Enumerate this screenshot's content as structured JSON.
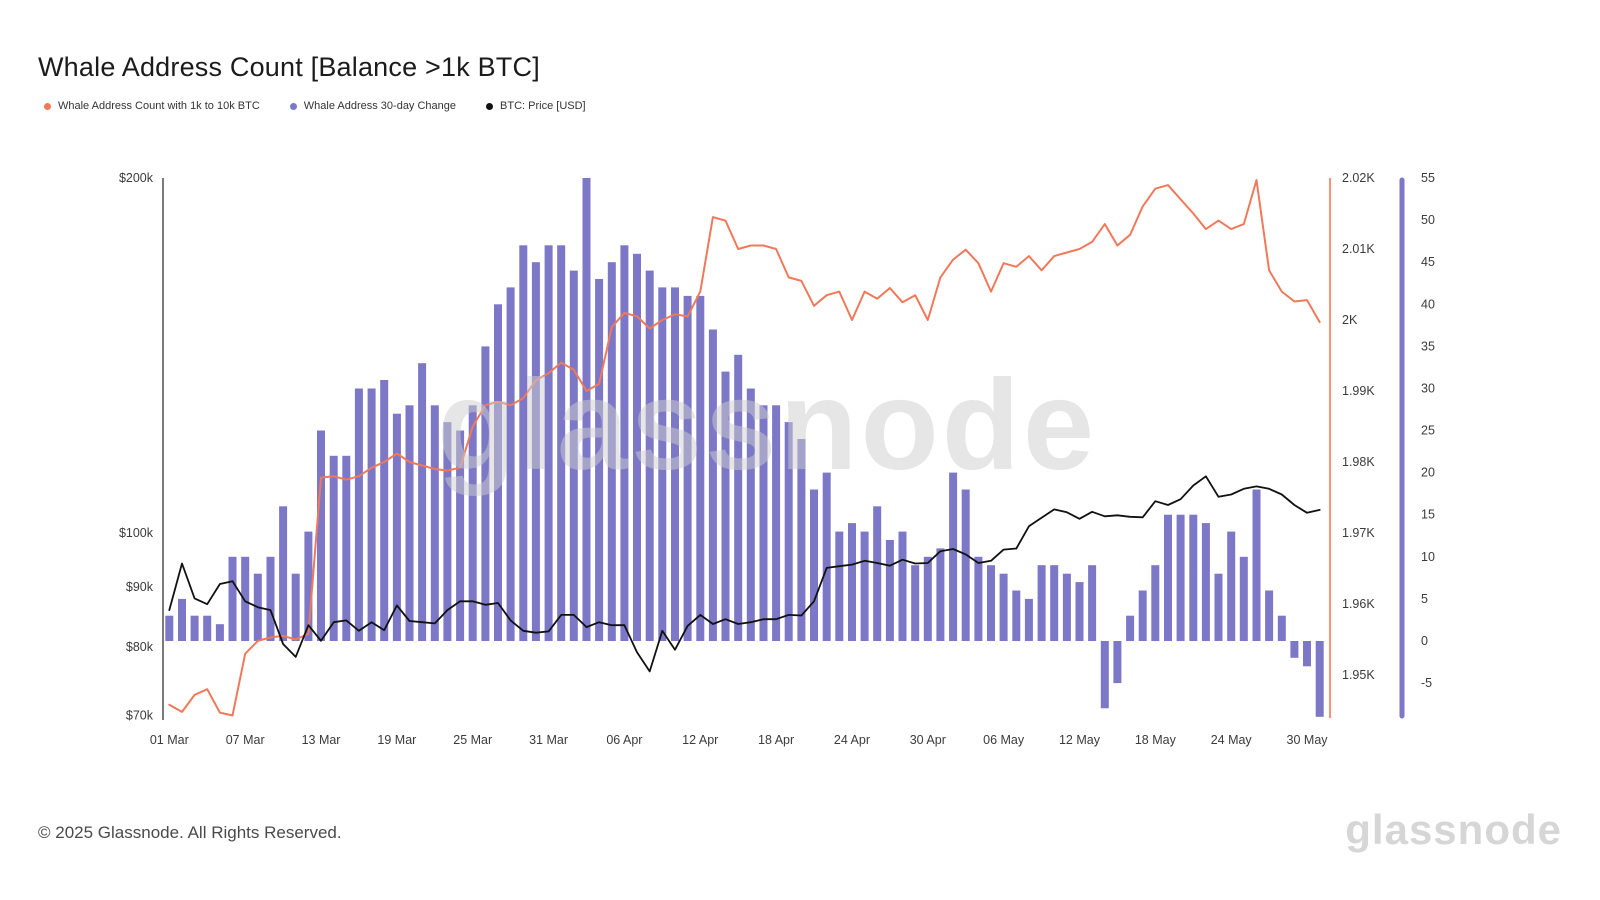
{
  "page": {
    "title": "Whale Address Count [Balance >1k BTC]",
    "footer": "© 2025 Glassnode. All Rights Reserved.",
    "watermark": "glassnode"
  },
  "legend": [
    {
      "label": "Whale Address Count with 1k to 10k BTC",
      "color": "#f0795a"
    },
    {
      "label": "Whale Address 30-day Change",
      "color": "#7d77c7"
    },
    {
      "label": "BTC: Price [USD]",
      "color": "#111111"
    }
  ],
  "chart_data": {
    "type": "mixed",
    "title": "Whale Address Count [Balance >1k BTC]",
    "days": 92,
    "x_ticks": [
      {
        "label": "01 Mar",
        "index": 0
      },
      {
        "label": "07 Mar",
        "index": 6
      },
      {
        "label": "13 Mar",
        "index": 12
      },
      {
        "label": "19 Mar",
        "index": 18
      },
      {
        "label": "25 Mar",
        "index": 24
      },
      {
        "label": "31 Mar",
        "index": 30
      },
      {
        "label": "06 Apr",
        "index": 36
      },
      {
        "label": "12 Apr",
        "index": 42
      },
      {
        "label": "18 Apr",
        "index": 48
      },
      {
        "label": "24 Apr",
        "index": 54
      },
      {
        "label": "30 Apr",
        "index": 60
      },
      {
        "label": "06 May",
        "index": 66
      },
      {
        "label": "12 May",
        "index": 72
      },
      {
        "label": "18 May",
        "index": 78
      },
      {
        "label": "24 May",
        "index": 84
      },
      {
        "label": "30 May",
        "index": 90
      }
    ],
    "left_axis": {
      "name": "BTC price USD",
      "scale": "log",
      "ticks": [
        {
          "label": "$200k",
          "value": 200
        },
        {
          "label": "$100k",
          "value": 100
        },
        {
          "label": "$90k",
          "value": 90
        },
        {
          "label": "$80k",
          "value": 80
        },
        {
          "label": "$70k",
          "value": 70
        }
      ]
    },
    "right_axis_count": {
      "name": "Whale address count (K)",
      "scale": "linear",
      "ticks": [
        {
          "label": "2.02K",
          "value": 2.02
        },
        {
          "label": "2.01K",
          "value": 2.01
        },
        {
          "label": "2K",
          "value": 2.0
        },
        {
          "label": "1.99K",
          "value": 1.99
        },
        {
          "label": "1.98K",
          "value": 1.98
        },
        {
          "label": "1.97K",
          "value": 1.97
        },
        {
          "label": "1.96K",
          "value": 1.96
        },
        {
          "label": "1.95K",
          "value": 1.95
        }
      ]
    },
    "right_axis_change": {
      "name": "30-day change",
      "scale": "linear",
      "max": 55,
      "ticks": [
        {
          "label": "55",
          "value": 55
        },
        {
          "label": "50",
          "value": 50
        },
        {
          "label": "45",
          "value": 45
        },
        {
          "label": "40",
          "value": 40
        },
        {
          "label": "35",
          "value": 35
        },
        {
          "label": "30",
          "value": 30
        },
        {
          "label": "25",
          "value": 25
        },
        {
          "label": "20",
          "value": 20
        },
        {
          "label": "15",
          "value": 15
        },
        {
          "label": "10",
          "value": 10
        },
        {
          "label": "5",
          "value": 5
        },
        {
          "label": "0",
          "value": 0
        },
        {
          "label": "-5",
          "value": -5
        }
      ]
    },
    "series": [
      {
        "name": "Whale Address 30-day Change",
        "type": "bar",
        "axis": "change",
        "color": "#7d77c7",
        "values": [
          3,
          5,
          3,
          3,
          2,
          10,
          10,
          8,
          10,
          16,
          8,
          13,
          25,
          22,
          22,
          30,
          30,
          31,
          27,
          28,
          33,
          28,
          26,
          25,
          28,
          35,
          40,
          42,
          47,
          45,
          47,
          47,
          44,
          55,
          43,
          45,
          47,
          46,
          44,
          42,
          42,
          41,
          41,
          37,
          32,
          34,
          30,
          28,
          28,
          26,
          24,
          18,
          20,
          13,
          14,
          13,
          16,
          12,
          13,
          9,
          10,
          11,
          20,
          18,
          10,
          9,
          8,
          6,
          5,
          9,
          9,
          8,
          7,
          9,
          -8,
          -5,
          3,
          6,
          9,
          15,
          15,
          15,
          14,
          8,
          13,
          10,
          18,
          6,
          3,
          -2,
          -3,
          -9
        ]
      },
      {
        "name": "Whale Address Count with 1k to 10k BTC",
        "type": "line",
        "axis": "count",
        "color": "#f0795a",
        "values": [
          1.9458,
          1.9448,
          1.9472,
          1.948,
          1.9447,
          1.9443,
          1.953,
          1.9548,
          1.9553,
          1.9555,
          1.955,
          1.9558,
          1.9778,
          1.978,
          1.9775,
          1.978,
          1.9792,
          1.98,
          1.9812,
          1.98,
          1.9795,
          1.979,
          1.9788,
          1.9792,
          1.985,
          1.988,
          1.9885,
          1.988,
          1.989,
          1.9915,
          1.9925,
          1.994,
          1.993,
          1.99,
          1.991,
          1.999,
          2.001,
          2.0005,
          1.9988,
          2.0,
          2.0008,
          2.0005,
          2.004,
          2.0145,
          2.014,
          2.01,
          2.0105,
          2.0105,
          2.01,
          2.006,
          2.0055,
          2.002,
          2.0035,
          2.004,
          2.0,
          2.004,
          2.003,
          2.0045,
          2.0025,
          2.0035,
          2.0,
          2.006,
          2.0085,
          2.0099,
          2.008,
          2.004,
          2.008,
          2.0075,
          2.009,
          2.007,
          2.009,
          2.0095,
          2.01,
          2.011,
          2.0135,
          2.0105,
          2.012,
          2.016,
          2.0185,
          2.019,
          2.017,
          2.015,
          2.0128,
          2.014,
          2.0128,
          2.0135,
          2.0197,
          2.007,
          2.004,
          2.0026,
          2.0028,
          1.9997
        ]
      },
      {
        "name": "BTC: Price [USD]",
        "type": "line",
        "axis": "price",
        "color": "#111111",
        "values": [
          86.0,
          94.2,
          88.0,
          87.0,
          90.5,
          91.0,
          87.5,
          86.5,
          86.0,
          80.5,
          78.5,
          83.5,
          81.0,
          84.0,
          84.3,
          82.6,
          84.0,
          82.7,
          86.8,
          84.2,
          84.0,
          83.8,
          86.0,
          87.5,
          87.5,
          86.9,
          87.2,
          84.3,
          82.6,
          82.3,
          82.5,
          85.2,
          85.2,
          83.2,
          84.0,
          83.5,
          83.5,
          79.2,
          76.3,
          82.6,
          79.6,
          83.4,
          85.2,
          83.7,
          84.5,
          83.7,
          84.0,
          84.5,
          84.5,
          85.2,
          85.1,
          87.5,
          93.4,
          93.7,
          94.0,
          94.7,
          94.3,
          93.8,
          94.9,
          94.2,
          94.3,
          96.5,
          96.9,
          95.9,
          94.3,
          94.7,
          96.8,
          97.0,
          101.3,
          103.0,
          104.7,
          104.1,
          102.8,
          104.2,
          103.3,
          103.5,
          103.2,
          103.1,
          106.4,
          105.6,
          106.8,
          109.7,
          111.7,
          107.3,
          107.8,
          109.0,
          109.5,
          109.0,
          107.8,
          105.6,
          104.0,
          104.6
        ]
      }
    ]
  }
}
